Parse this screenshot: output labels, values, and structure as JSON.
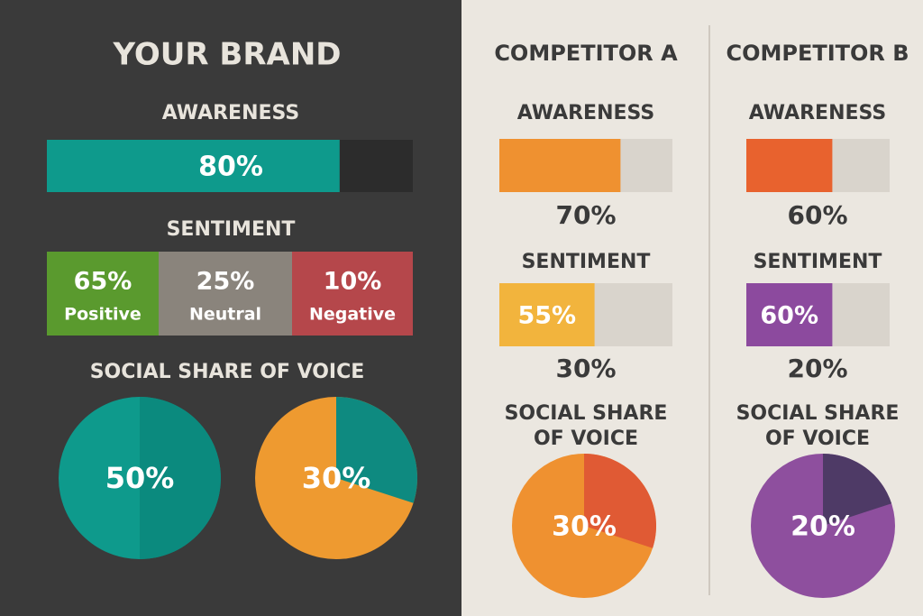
{
  "brand": {
    "title": "YOUR BRAND",
    "awareness": {
      "title": "AWARENESS",
      "value": 80,
      "label": "80%",
      "color": "#0e9a8c"
    },
    "sentiment": {
      "title": "SENTIMENT",
      "segments": [
        {
          "label": "65%",
          "name": "Positive",
          "color": "#5a9a2e"
        },
        {
          "label": "25%",
          "name": "Neutral",
          "color": "#8a847c"
        },
        {
          "label": "10%",
          "name": "Negative",
          "color": "#b5474b"
        }
      ]
    },
    "share": {
      "title": "SOCIAL SHARE OF VOICE",
      "pies": [
        {
          "value": 50,
          "label": "50%",
          "color": "#0b8a7e",
          "rest_color": "#0e9a8c"
        },
        {
          "value": 30,
          "label": "30%",
          "color": "#0e8a80",
          "rest_color": "#ee9a30"
        }
      ]
    }
  },
  "competitors": [
    {
      "title": "COMPETITOR A",
      "awareness": {
        "title": "AWARENESS",
        "value": 70,
        "label": "70%",
        "color": "#ef9130"
      },
      "sentiment": {
        "title": "SENTIMENT",
        "value": 55,
        "label": "55%",
        "color": "#f2b43d",
        "note": "30%"
      },
      "share": {
        "title": [
          "SOCIAL SHARE",
          "OF VOICE"
        ],
        "value": 30,
        "label": "30%",
        "color": "#e05a34",
        "rest_color": "#ef9130"
      }
    },
    {
      "title": "COMPETITOR B",
      "awareness": {
        "title": "AWARENESS",
        "value": 60,
        "label": "60%",
        "color": "#e8622e"
      },
      "sentiment": {
        "title": "SENTIMENT",
        "value": 60,
        "label": "60%",
        "color": "#8c4a9e",
        "note": "20%"
      },
      "share": {
        "title": [
          "SOCIAL SHARE",
          "OF VOICE"
        ],
        "value": 20,
        "label": "20%",
        "color": "#4e3a66",
        "rest_color": "#8e4f9e"
      }
    }
  ]
}
